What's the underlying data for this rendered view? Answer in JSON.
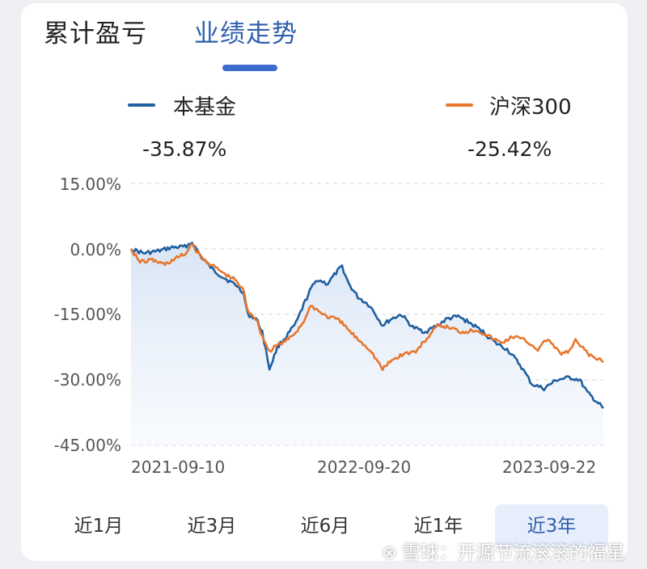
{
  "tabs": {
    "cumulative": "累计盈亏",
    "trend": "业绩走势"
  },
  "legend": [
    {
      "name": "本基金",
      "value": "-35.87%",
      "color": "#1f5f9f"
    },
    {
      "name": "沪深300",
      "value": "-25.42%",
      "color": "#e8762c"
    }
  ],
  "ranges": [
    "近1月",
    "近3月",
    "近6月",
    "近1年",
    "近3年"
  ],
  "active_range": "近3年",
  "watermark": {
    "icon": "snowball-logo",
    "text": "雪球：开源节流滚滚的福星"
  },
  "chart_data": {
    "type": "line",
    "x_start": "2021-09-10",
    "x_end": "2023-10-31",
    "xtick_labels": [
      "2021-09-10",
      "2022-09-20",
      "2023-09-22"
    ],
    "yticks": [
      15,
      0,
      -15,
      -30,
      -45
    ],
    "ytick_labels": [
      "15.00%",
      "0.00%",
      "-15.00%",
      "-30.00%",
      "-45.00%"
    ],
    "ylim": [
      -45,
      15
    ],
    "grid": true,
    "series": [
      {
        "name": "本基金",
        "color": "#1f5f9f",
        "points": [
          [
            "2021-09-10",
            0.0
          ],
          [
            "2021-10-01",
            -1.0
          ],
          [
            "2021-10-25",
            -0.5
          ],
          [
            "2021-11-15",
            0.3
          ],
          [
            "2021-12-08",
            0.5
          ],
          [
            "2021-12-20",
            1.5
          ],
          [
            "2022-01-05",
            -2.0
          ],
          [
            "2022-01-25",
            -5.0
          ],
          [
            "2022-02-15",
            -7.0
          ],
          [
            "2022-03-05",
            -8.5
          ],
          [
            "2022-03-15",
            -10.0
          ],
          [
            "2022-03-22",
            -15.0
          ],
          [
            "2022-04-05",
            -16.0
          ],
          [
            "2022-04-15",
            -19.0
          ],
          [
            "2022-04-27",
            -27.5
          ],
          [
            "2022-05-10",
            -22.5
          ],
          [
            "2022-05-25",
            -20.0
          ],
          [
            "2022-06-10",
            -17.0
          ],
          [
            "2022-06-25",
            -12.0
          ],
          [
            "2022-07-05",
            -9.0
          ],
          [
            "2022-07-15",
            -7.0
          ],
          [
            "2022-08-01",
            -8.0
          ],
          [
            "2022-08-15",
            -5.5
          ],
          [
            "2022-08-25",
            -4.0
          ],
          [
            "2022-09-05",
            -8.0
          ],
          [
            "2022-09-20",
            -11.0
          ],
          [
            "2022-10-10",
            -13.0
          ],
          [
            "2022-10-31",
            -17.5
          ],
          [
            "2022-11-15",
            -16.0
          ],
          [
            "2022-12-01",
            -15.0
          ],
          [
            "2022-12-20",
            -18.0
          ],
          [
            "2023-01-10",
            -19.0
          ],
          [
            "2023-01-30",
            -17.5
          ],
          [
            "2023-02-15",
            -16.0
          ],
          [
            "2023-03-05",
            -15.5
          ],
          [
            "2023-03-25",
            -17.0
          ],
          [
            "2023-04-15",
            -19.0
          ],
          [
            "2023-05-05",
            -21.5
          ],
          [
            "2023-05-25",
            -23.0
          ],
          [
            "2023-06-15",
            -26.5
          ],
          [
            "2023-07-05",
            -31.0
          ],
          [
            "2023-07-25",
            -32.0
          ],
          [
            "2023-08-15",
            -30.0
          ],
          [
            "2023-09-05",
            -29.5
          ],
          [
            "2023-09-22",
            -30.0
          ],
          [
            "2023-10-05",
            -33.0
          ],
          [
            "2023-10-20",
            -35.0
          ],
          [
            "2023-10-31",
            -36.5
          ]
        ]
      },
      {
        "name": "沪深300",
        "color": "#e8762c",
        "points": [
          [
            "2021-09-10",
            0.0
          ],
          [
            "2021-09-25",
            -3.0
          ],
          [
            "2021-10-15",
            -2.5
          ],
          [
            "2021-11-05",
            -3.5
          ],
          [
            "2021-11-25",
            -2.0
          ],
          [
            "2021-12-10",
            -1.0
          ],
          [
            "2021-12-20",
            1.0
          ],
          [
            "2022-01-05",
            -2.0
          ],
          [
            "2022-01-25",
            -4.0
          ],
          [
            "2022-02-15",
            -6.0
          ],
          [
            "2022-03-01",
            -7.0
          ],
          [
            "2022-03-15",
            -9.5
          ],
          [
            "2022-03-22",
            -14.0
          ],
          [
            "2022-04-05",
            -16.0
          ],
          [
            "2022-04-15",
            -20.0
          ],
          [
            "2022-04-27",
            -23.5
          ],
          [
            "2022-05-10",
            -22.0
          ],
          [
            "2022-05-25",
            -21.0
          ],
          [
            "2022-06-10",
            -19.0
          ],
          [
            "2022-06-25",
            -16.0
          ],
          [
            "2022-07-05",
            -13.0
          ],
          [
            "2022-07-15",
            -14.0
          ],
          [
            "2022-08-01",
            -15.5
          ],
          [
            "2022-08-15",
            -16.0
          ],
          [
            "2022-08-25",
            -17.0
          ],
          [
            "2022-09-15",
            -20.0
          ],
          [
            "2022-10-10",
            -23.0
          ],
          [
            "2022-10-31",
            -27.5
          ],
          [
            "2022-11-15",
            -25.5
          ],
          [
            "2022-12-05",
            -24.0
          ],
          [
            "2022-12-25",
            -23.5
          ],
          [
            "2023-01-15",
            -20.0
          ],
          [
            "2023-01-31",
            -17.5
          ],
          [
            "2023-02-20",
            -18.0
          ],
          [
            "2023-03-10",
            -19.0
          ],
          [
            "2023-04-05",
            -18.5
          ],
          [
            "2023-04-25",
            -20.0
          ],
          [
            "2023-05-15",
            -21.5
          ],
          [
            "2023-06-05",
            -20.0
          ],
          [
            "2023-06-25",
            -21.0
          ],
          [
            "2023-07-15",
            -23.0
          ],
          [
            "2023-07-31",
            -20.5
          ],
          [
            "2023-08-20",
            -24.0
          ],
          [
            "2023-09-05",
            -23.5
          ],
          [
            "2023-09-15",
            -21.0
          ],
          [
            "2023-09-25",
            -22.5
          ],
          [
            "2023-10-10",
            -24.5
          ],
          [
            "2023-10-25",
            -25.5
          ],
          [
            "2023-10-31",
            -26.0
          ]
        ]
      }
    ]
  }
}
